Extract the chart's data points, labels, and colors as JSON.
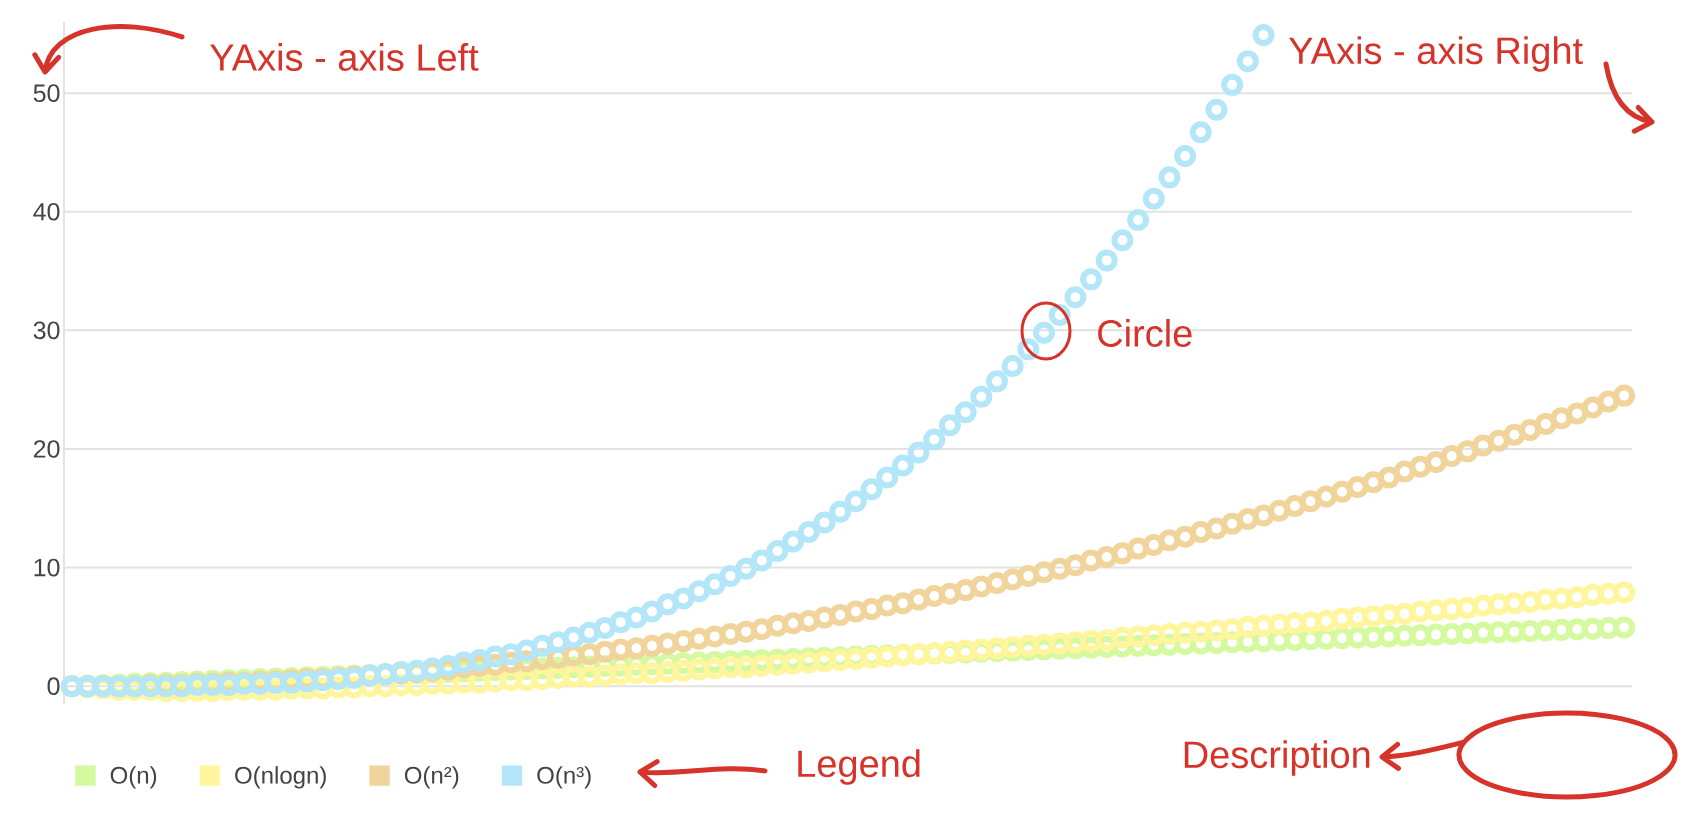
{
  "chart_data": {
    "type": "scatter",
    "annotations": [
      "YAxis - axis Left",
      "YAxis - axis Right",
      "Circle",
      "Description",
      "Legend"
    ],
    "categories": [
      null,
      null,
      null,
      null,
      null,
      null,
      null,
      null,
      null,
      null,
      null,
      null,
      null,
      null,
      null,
      null,
      null,
      null,
      null,
      null,
      null,
      null,
      null,
      null,
      null,
      null,
      null,
      null,
      null,
      null,
      null,
      null,
      null,
      null,
      null,
      null,
      null,
      null,
      null,
      null,
      null,
      null,
      null,
      null,
      null,
      null,
      null,
      null,
      null,
      null,
      null,
      null,
      null,
      null,
      null,
      null,
      null,
      null,
      null,
      null,
      null,
      null,
      null,
      null,
      null,
      null,
      null,
      null,
      null,
      null,
      null,
      null,
      null,
      null,
      null,
      null,
      null,
      null,
      null,
      null,
      null,
      null,
      null,
      null,
      null,
      null,
      null,
      null,
      null,
      null,
      null,
      null,
      null,
      null,
      null,
      null,
      null,
      null,
      null,
      null
    ],
    "series": [
      {
        "name": "O(n)",
        "color": "#d5f99e",
        "values": [
          0,
          0.05,
          0.1,
          0.15,
          0.2,
          0.25,
          0.3,
          0.35,
          0.4,
          0.45,
          0.5,
          0.55,
          0.6,
          0.65,
          0.7,
          0.75,
          0.8,
          0.85,
          0.9,
          0.95,
          1,
          1.05,
          1.1,
          1.15,
          1.2,
          1.25,
          1.3,
          1.35,
          1.4,
          1.45,
          1.5,
          1.55,
          1.6,
          1.65,
          1.7,
          1.75,
          1.8,
          1.85,
          1.9,
          1.95,
          2,
          2.05,
          2.1,
          2.15,
          2.2,
          2.25,
          2.3,
          2.35,
          2.4,
          2.45,
          2.5,
          2.55,
          2.6,
          2.65,
          2.7,
          2.75,
          2.8,
          2.85,
          2.9,
          2.95,
          3,
          3.05,
          3.1,
          3.15,
          3.2,
          3.25,
          3.3,
          3.35,
          3.4,
          3.45,
          3.5,
          3.55,
          3.6,
          3.65,
          3.7,
          3.75,
          3.8,
          3.85,
          3.9,
          3.95,
          4,
          4.05,
          4.1,
          4.15,
          4.2,
          4.25,
          4.3,
          4.35,
          4.4,
          4.45,
          4.5,
          4.55,
          4.6,
          4.65,
          4.7,
          4.75,
          4.8,
          4.85,
          4.9,
          4.95
        ]
      },
      {
        "name": "O(nlogn)",
        "color": "#fff59d",
        "values": [
          0,
          -0.1,
          -0.2,
          -0.3,
          -0.3,
          -0.3,
          -0.4,
          -0.4,
          -0.4,
          -0.4,
          -0.3,
          -0.3,
          -0.3,
          -0.3,
          -0.2,
          -0.2,
          -0.2,
          -0.1,
          -0.1,
          0,
          0,
          0.1,
          0.1,
          0.2,
          0.2,
          0.3,
          0.3,
          0.4,
          0.5,
          0.5,
          0.6,
          0.7,
          0.8,
          0.8,
          0.9,
          1,
          1.1,
          1.1,
          1.2,
          1.3,
          1.4,
          1.5,
          1.6,
          1.6,
          1.7,
          1.8,
          1.9,
          2,
          2.1,
          2.2,
          2.3,
          2.4,
          2.5,
          2.6,
          2.7,
          2.8,
          2.9,
          3,
          3.1,
          3.2,
          3.3,
          3.4,
          3.5,
          3.6,
          3.7,
          3.8,
          3.9,
          4.1,
          4.2,
          4.3,
          4.4,
          4.5,
          4.6,
          4.7,
          4.8,
          5,
          5.1,
          5.2,
          5.3,
          5.4,
          5.5,
          5.7,
          5.8,
          5.9,
          6,
          6.1,
          6.3,
          6.4,
          6.5,
          6.6,
          6.8,
          6.9,
          7,
          7.1,
          7.3,
          7.4,
          7.5,
          7.7,
          7.8,
          7.9
        ]
      },
      {
        "name": "O(n²)",
        "color": "#f0d49b",
        "values": [
          0,
          0,
          0,
          0,
          0,
          0.1,
          0.1,
          0.1,
          0.2,
          0.2,
          0.3,
          0.3,
          0.4,
          0.4,
          0.5,
          0.6,
          0.6,
          0.7,
          0.8,
          0.9,
          1,
          1.1,
          1.2,
          1.3,
          1.4,
          1.6,
          1.7,
          1.8,
          2,
          2.1,
          2.3,
          2.4,
          2.6,
          2.7,
          2.9,
          3.1,
          3.2,
          3.4,
          3.6,
          3.8,
          4,
          4.2,
          4.4,
          4.6,
          4.8,
          5.1,
          5.3,
          5.5,
          5.8,
          6,
          6.3,
          6.5,
          6.8,
          7,
          7.3,
          7.6,
          7.8,
          8.1,
          8.4,
          8.7,
          9,
          9.3,
          9.6,
          9.9,
          10.2,
          10.6,
          10.9,
          11.2,
          11.6,
          11.9,
          12.3,
          12.6,
          13,
          13.3,
          13.7,
          14.1,
          14.4,
          14.8,
          15.2,
          15.6,
          16,
          16.4,
          16.8,
          17.2,
          17.6,
          18.1,
          18.5,
          18.9,
          19.4,
          19.8,
          20.3,
          20.7,
          21.2,
          21.6,
          22.1,
          22.6,
          23,
          23.5,
          24,
          24.5
        ]
      },
      {
        "name": "O(n³)",
        "color": "#b4e6f9",
        "values": [
          0,
          0,
          0,
          0,
          0,
          0,
          0,
          0,
          0.1,
          0.1,
          0.1,
          0.2,
          0.2,
          0.3,
          0.3,
          0.4,
          0.5,
          0.6,
          0.7,
          0.9,
          1,
          1.2,
          1.3,
          1.5,
          1.7,
          2,
          2.2,
          2.5,
          2.7,
          3,
          3.4,
          3.7,
          4.1,
          4.5,
          4.9,
          5.4,
          5.8,
          6.3,
          6.9,
          7.4,
          8,
          8.6,
          9.3,
          9.9,
          10.6,
          11.4,
          12.2,
          13,
          13.8,
          14.7,
          15.6,
          16.6,
          17.6,
          18.6,
          19.7,
          20.8,
          22,
          23.1,
          24.4,
          25.7,
          27,
          28.4,
          29.8,
          31.3,
          32.8,
          34.3,
          35.9,
          37.6,
          39.3,
          41.1,
          42.9,
          44.7,
          46.7,
          48.6,
          50.7,
          52.7,
          54.9,
          null,
          null,
          null,
          null,
          null,
          null,
          null,
          null,
          null,
          null,
          null,
          null,
          null,
          null,
          null,
          null,
          null,
          null,
          null,
          null,
          null,
          null,
          null
        ]
      }
    ],
    "ylim": [
      -1.5,
      56
    ],
    "yticks": [
      0,
      10,
      20,
      30,
      40,
      50
    ],
    "grid": "y",
    "legend": "bottom left",
    "marker": "circle",
    "tick_labels": "y"
  }
}
